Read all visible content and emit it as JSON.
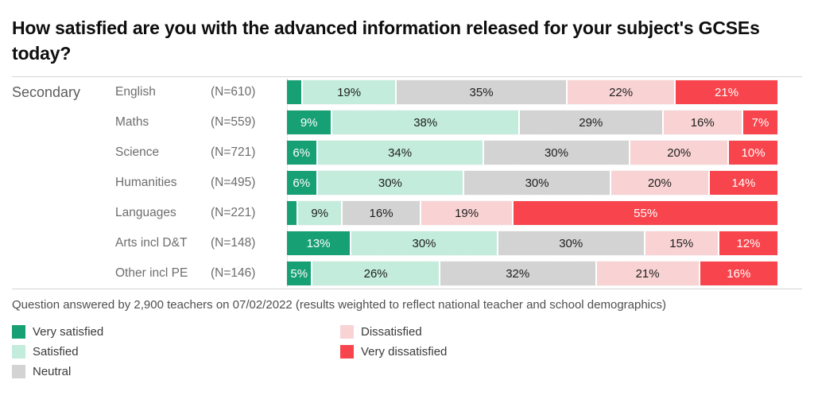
{
  "title": "How satisfied are you with the advanced information released for your subject's GCSEs today?",
  "footnote": "Question answered by 2,900 teachers on 07/02/2022 (results weighted to reflect national teacher and school demographics)",
  "chart_data": {
    "type": "bar",
    "orientation": "horizontal-stacked",
    "group": "Secondary",
    "categories": [
      "English",
      "Maths",
      "Science",
      "Humanities",
      "Languages",
      "Arts incl D&T",
      "Other incl PE"
    ],
    "n_labels": [
      "(N=610)",
      "(N=559)",
      "(N=721)",
      "(N=495)",
      "(N=221)",
      "(N=148)",
      "(N=146)"
    ],
    "xlim": [
      0,
      100
    ],
    "grid": false,
    "series": [
      {
        "key": "very-satisfied",
        "name": "Very satisfied",
        "color": "#18a075",
        "label_color": "#ffffff",
        "values": [
          3,
          9,
          6,
          6,
          2,
          13,
          5
        ]
      },
      {
        "key": "satisfied",
        "name": "Satisfied",
        "color": "#c3ecdc",
        "label_color": "#1d1d1d",
        "values": [
          19,
          38,
          34,
          30,
          9,
          30,
          26
        ]
      },
      {
        "key": "neutral",
        "name": "Neutral",
        "color": "#d3d3d3",
        "label_color": "#1d1d1d",
        "values": [
          35,
          29,
          30,
          30,
          16,
          30,
          32
        ]
      },
      {
        "key": "dissatisfied",
        "name": "Dissatisfied",
        "color": "#f9d3d3",
        "label_color": "#1d1d1d",
        "values": [
          22,
          16,
          20,
          20,
          19,
          15,
          21
        ]
      },
      {
        "key": "very-dissatisfied",
        "name": "Very dissatisfied",
        "color": "#f8444c",
        "label_color": "#ffffff",
        "values": [
          21,
          7,
          10,
          14,
          55,
          12,
          16
        ]
      }
    ],
    "rows": [
      {
        "subject": "English",
        "n": "(N=610)",
        "segments": [
          {
            "value": 3,
            "label": ""
          },
          {
            "value": 19,
            "label": "19%"
          },
          {
            "value": 35,
            "label": "35%"
          },
          {
            "value": 22,
            "label": "22%"
          },
          {
            "value": 21,
            "label": "21%"
          }
        ]
      },
      {
        "subject": "Maths",
        "n": "(N=559)",
        "segments": [
          {
            "value": 9,
            "label": "9%"
          },
          {
            "value": 38,
            "label": "38%"
          },
          {
            "value": 29,
            "label": "29%"
          },
          {
            "value": 16,
            "label": "16%"
          },
          {
            "value": 7,
            "label": "7%"
          }
        ]
      },
      {
        "subject": "Science",
        "n": "(N=721)",
        "segments": [
          {
            "value": 6,
            "label": "6%"
          },
          {
            "value": 34,
            "label": "34%"
          },
          {
            "value": 30,
            "label": "30%"
          },
          {
            "value": 20,
            "label": "20%"
          },
          {
            "value": 10,
            "label": "10%"
          }
        ]
      },
      {
        "subject": "Humanities",
        "n": "(N=495)",
        "segments": [
          {
            "value": 6,
            "label": "6%"
          },
          {
            "value": 30,
            "label": "30%"
          },
          {
            "value": 30,
            "label": "30%"
          },
          {
            "value": 20,
            "label": "20%"
          },
          {
            "value": 14,
            "label": "14%"
          }
        ]
      },
      {
        "subject": "Languages",
        "n": "(N=221)",
        "segments": [
          {
            "value": 2,
            "label": ""
          },
          {
            "value": 9,
            "label": "9%"
          },
          {
            "value": 16,
            "label": "16%"
          },
          {
            "value": 19,
            "label": "19%"
          },
          {
            "value": 55,
            "label": "55%"
          }
        ]
      },
      {
        "subject": "Arts incl D&T",
        "n": "(N=148)",
        "segments": [
          {
            "value": 13,
            "label": "13%"
          },
          {
            "value": 30,
            "label": "30%"
          },
          {
            "value": 30,
            "label": "30%"
          },
          {
            "value": 15,
            "label": "15%"
          },
          {
            "value": 12,
            "label": "12%"
          }
        ]
      },
      {
        "subject": "Other incl PE",
        "n": "(N=146)",
        "segments": [
          {
            "value": 5,
            "label": "5%"
          },
          {
            "value": 26,
            "label": "26%"
          },
          {
            "value": 32,
            "label": "32%"
          },
          {
            "value": 21,
            "label": "21%"
          },
          {
            "value": 16,
            "label": "16%"
          }
        ]
      }
    ]
  },
  "legend": {
    "columns": [
      [
        "Very satisfied",
        "Satisfied",
        "Neutral"
      ],
      [
        "Dissatisfied",
        "Very dissatisfied"
      ]
    ]
  }
}
